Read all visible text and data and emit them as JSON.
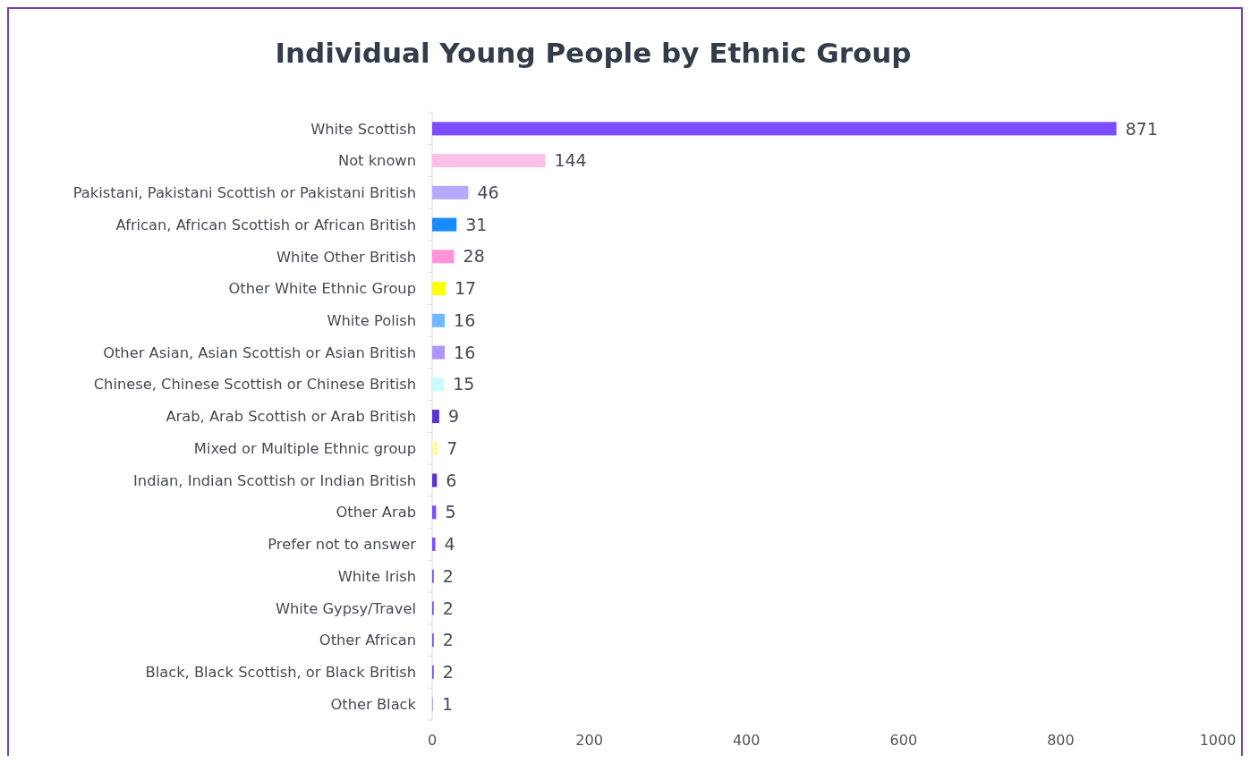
{
  "chart_data": {
    "type": "bar",
    "orientation": "horizontal",
    "title": "Individual Young People by Ethnic Group",
    "categories": [
      "White Scottish",
      "Not known",
      "Pakistani, Pakistani Scottish or Pakistani British",
      "African, African Scottish or African British",
      "White Other British",
      "Other White Ethnic Group",
      "White Polish",
      "Other Asian, Asian Scottish or Asian British",
      "Chinese, Chinese Scottish or Chinese British",
      "Arab, Arab Scottish or Arab British",
      "Mixed or Multiple Ethnic group",
      "Indian, Indian Scottish or Indian British",
      "Other Arab",
      "Prefer not to answer",
      "White Irish",
      "White Gypsy/Travel",
      "Other African",
      "Black, Black Scottish, or Black British",
      "Other Black"
    ],
    "values": [
      871,
      144,
      46,
      31,
      28,
      17,
      16,
      16,
      15,
      9,
      7,
      6,
      5,
      4,
      2,
      2,
      2,
      2,
      1
    ],
    "colors": [
      "#7b4dff",
      "#fbc0e8",
      "#b9a8ff",
      "#168cff",
      "#ff94d8",
      "#ffff00",
      "#70b8ff",
      "#b095ff",
      "#c8fbfb",
      "#5a35d6",
      "#fff9a0",
      "#5a35d6",
      "#7b4dff",
      "#7b4dff",
      "#7b4dff",
      "#7b4dff",
      "#7b4dff",
      "#7b4dff",
      "#a993e8"
    ],
    "xlim": [
      0,
      1000
    ],
    "xticks": [
      0,
      200,
      400,
      600,
      800,
      1000
    ],
    "data_labels": true,
    "grid": false
  }
}
